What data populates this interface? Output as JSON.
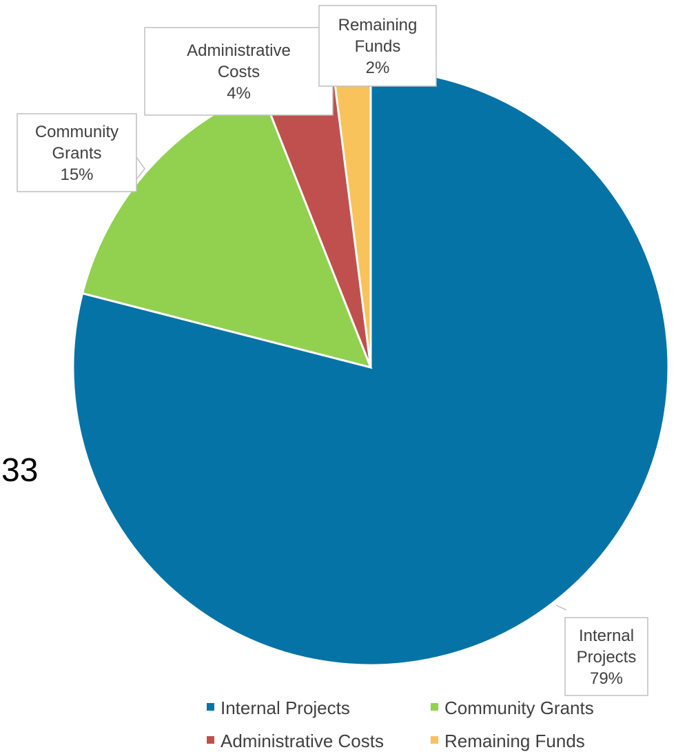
{
  "stray_text": "33",
  "colors": {
    "internal_projects": "#0573A6",
    "community_grants": "#92D050",
    "administrative_costs": "#C0504D",
    "remaining_funds": "#F8C35A"
  },
  "chart_data": {
    "type": "pie",
    "categories": [
      "Internal Projects",
      "Community Grants",
      "Administrative Costs",
      "Remaining Funds"
    ],
    "values": [
      79,
      15,
      4,
      2
    ],
    "labels": [
      {
        "lines": [
          "Internal",
          "Projects",
          "79%"
        ]
      },
      {
        "lines": [
          "Community",
          "Grants",
          "15%"
        ]
      },
      {
        "lines": [
          "Administrative",
          "Costs",
          "4%"
        ]
      },
      {
        "lines": [
          "Remaining",
          "Funds",
          "2%"
        ]
      }
    ],
    "legend": {
      "position": "bottom-right",
      "entries": [
        "Internal Projects",
        "Community Grants",
        "Administrative Costs",
        "Remaining Funds"
      ]
    }
  }
}
